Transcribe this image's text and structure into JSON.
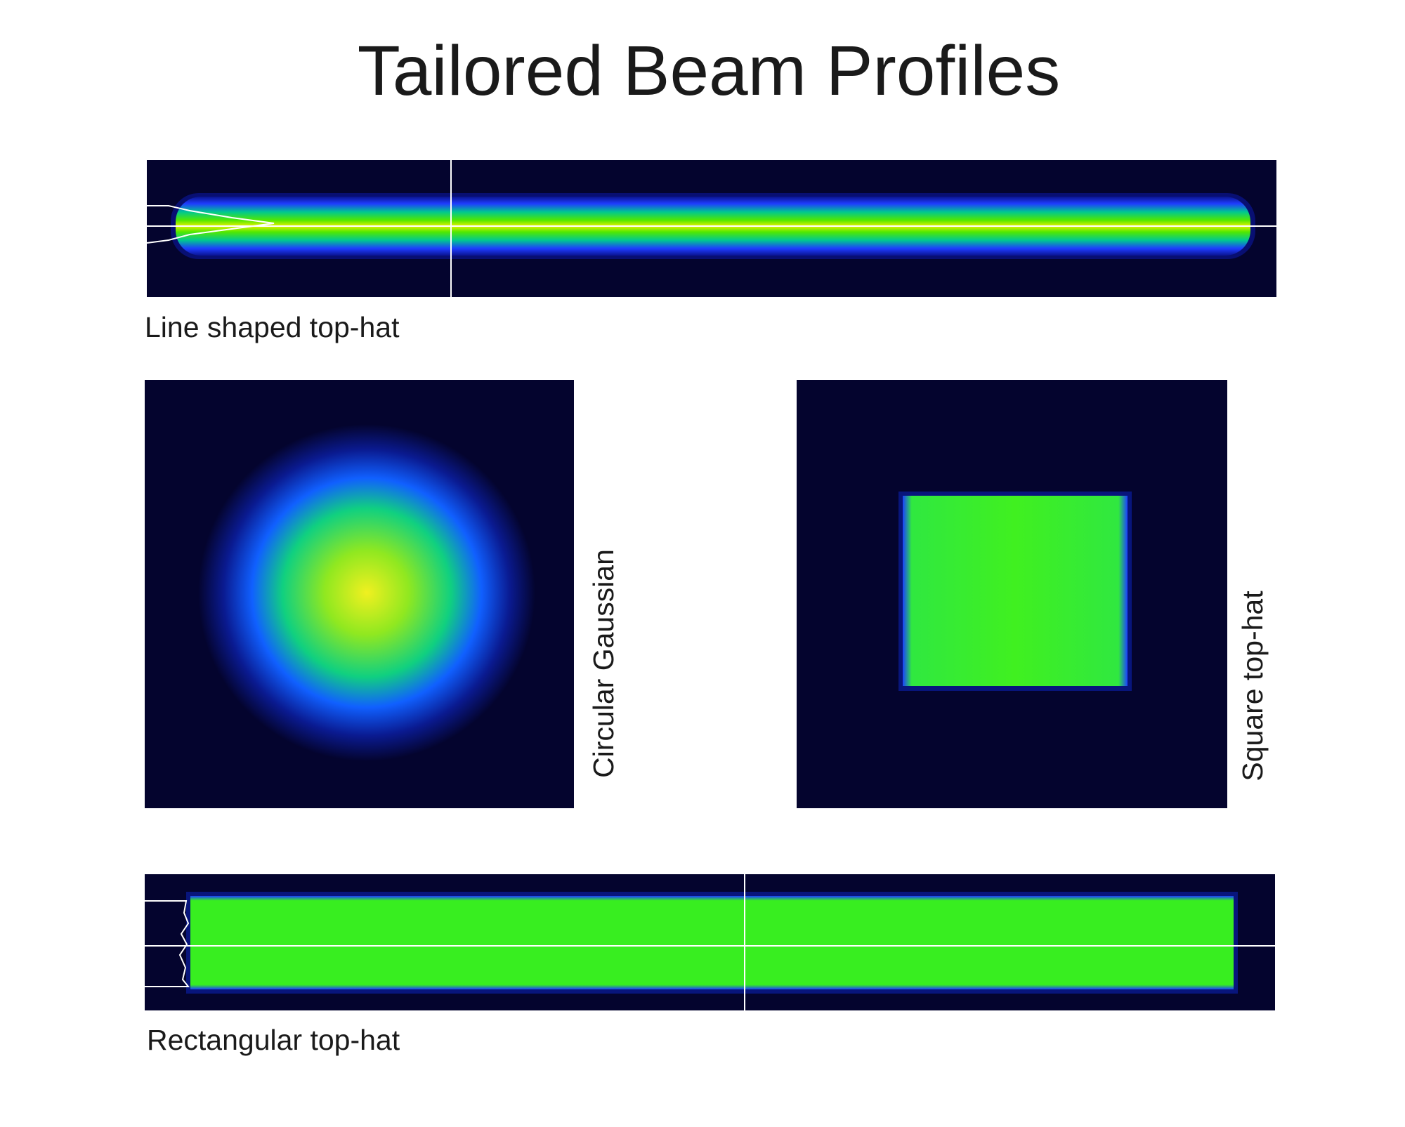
{
  "title": "Tailored Beam Profiles",
  "panels": [
    {
      "label": "Line shaped top-hat"
    },
    {
      "label": "Circular Gaussian"
    },
    {
      "label": "Square top-hat"
    },
    {
      "label": "Rectangular top-hat"
    }
  ]
}
